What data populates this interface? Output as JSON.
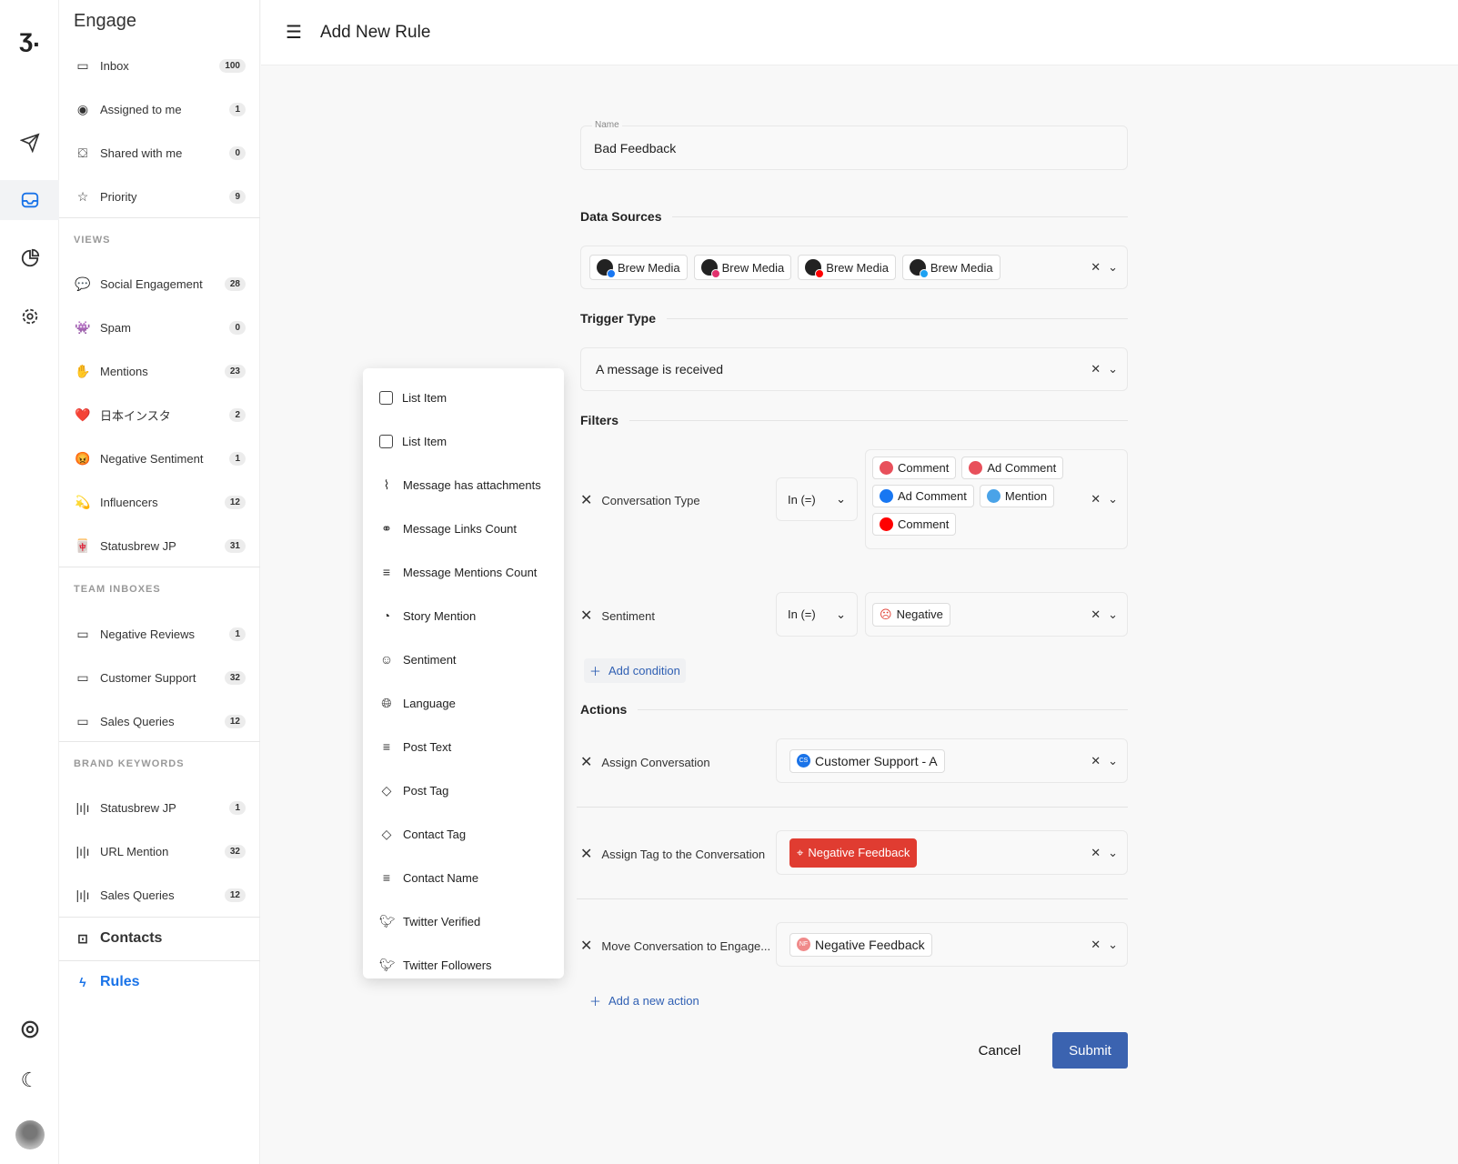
{
  "app": {
    "section_title": "Engage"
  },
  "header": {
    "title": "Add New Rule"
  },
  "sidebar": {
    "main": [
      {
        "label": "Inbox",
        "count": "100",
        "icon": "inbox-icon"
      },
      {
        "label": "Assigned to me",
        "count": "1",
        "icon": "user-circle-icon"
      },
      {
        "label": "Shared with me",
        "count": "0",
        "icon": "shared-users-icon"
      },
      {
        "label": "Priority",
        "count": "9",
        "icon": "star-icon"
      }
    ],
    "views_heading": "VIEWS",
    "views": [
      {
        "label": "Social Engagement",
        "count": "28",
        "icon": "💬"
      },
      {
        "label": "Spam",
        "count": "0",
        "icon": "👾"
      },
      {
        "label": "Mentions",
        "count": "23",
        "icon": "✋"
      },
      {
        "label": "日本インスタ",
        "count": "2",
        "icon": "❤️"
      },
      {
        "label": "Negative Sentiment",
        "count": "1",
        "icon": "😡"
      },
      {
        "label": "Influencers",
        "count": "12",
        "icon": "💫"
      },
      {
        "label": "Statusbrew JP",
        "count": "31",
        "icon": "🀄"
      }
    ],
    "team_heading": "TEAM INBOXES",
    "team": [
      {
        "label": "Negative Reviews",
        "count": "1"
      },
      {
        "label": "Customer Support",
        "count": "32"
      },
      {
        "label": "Sales Queries",
        "count": "12"
      }
    ],
    "brand_heading": "BRAND KEYWORDS",
    "brand": [
      {
        "label": "Statusbrew JP",
        "count": "1"
      },
      {
        "label": "URL Mention",
        "count": "32"
      },
      {
        "label": "Sales Queries",
        "count": "12"
      }
    ],
    "contacts": "Contacts",
    "rules": "Rules"
  },
  "colors": {
    "accent": "#1a73e8",
    "submit": "#3b63b0",
    "tag_red": "#e03c31",
    "link": "#2f5fb3"
  },
  "form": {
    "name_label": "Name",
    "name_value": "Bad Feedback",
    "data_sources_heading": "Data Sources",
    "data_sources": [
      {
        "label": "Brew Media",
        "network": "facebook",
        "color": "#1877f2"
      },
      {
        "label": "Brew Media",
        "network": "instagram",
        "color": "#e1306c"
      },
      {
        "label": "Brew Media",
        "network": "youtube",
        "color": "#ff0000"
      },
      {
        "label": "Brew Media",
        "network": "twitter",
        "color": "#1da1f2"
      }
    ],
    "trigger_heading": "Trigger Type",
    "trigger_value": "A message is received",
    "filters_heading": "Filters",
    "filters": [
      {
        "label": "Conversation Type",
        "operator": "In (=)",
        "values": [
          {
            "label": "Comment",
            "network": "instagram",
            "color": "#e8505b"
          },
          {
            "label": "Ad Comment",
            "network": "instagram",
            "color": "#e8505b"
          },
          {
            "label": "Ad Comment",
            "network": "facebook",
            "color": "#1877f2"
          },
          {
            "label": "Mention",
            "network": "twitter",
            "color": "#4aa3e8"
          },
          {
            "label": "Comment",
            "network": "youtube",
            "color": "#ff0000"
          }
        ]
      },
      {
        "label": "Sentiment",
        "operator": "In (=)",
        "values": [
          {
            "label": "Negative",
            "icon": "sad-face-icon",
            "color": "#e03c31"
          }
        ]
      }
    ],
    "add_condition": "Add condition",
    "actions_heading": "Actions",
    "actions": [
      {
        "label": "Assign Conversation",
        "value": "Customer Support - A",
        "initials": "CS",
        "color": "#1a73e8"
      },
      {
        "label": "Assign Tag to the Conversation",
        "value": "Negative Feedback",
        "color": "#e03c31"
      },
      {
        "label": "Move Conversation to Engage...",
        "value": "Negative Feedback",
        "initials": "NF",
        "color": "#f08a8a"
      }
    ],
    "add_action": "Add a new action",
    "cancel": "Cancel",
    "submit": "Submit"
  },
  "menu": {
    "items": [
      {
        "label": "List Item",
        "icon": "checkbox-icon"
      },
      {
        "label": "List Item",
        "icon": "checkbox-icon"
      },
      {
        "label": "Message has attachments",
        "icon": "paperclip-icon"
      },
      {
        "label": "Message Links Count",
        "icon": "link-icon"
      },
      {
        "label": "Message Mentions Count",
        "icon": "filter-icon"
      },
      {
        "label": "Story Mention",
        "icon": "story-icon"
      },
      {
        "label": "Sentiment",
        "icon": "smile-icon"
      },
      {
        "label": "Language",
        "icon": "globe-icon"
      },
      {
        "label": "Post Text",
        "icon": "filter-icon"
      },
      {
        "label": "Post Tag",
        "icon": "tag-icon"
      },
      {
        "label": "Contact Tag",
        "icon": "tag-icon"
      },
      {
        "label": "Contact Name",
        "icon": "filter-icon"
      },
      {
        "label": "Twitter Verified",
        "icon": "twitter-icon"
      },
      {
        "label": "Twitter Followers",
        "icon": "twitter-icon"
      }
    ]
  }
}
